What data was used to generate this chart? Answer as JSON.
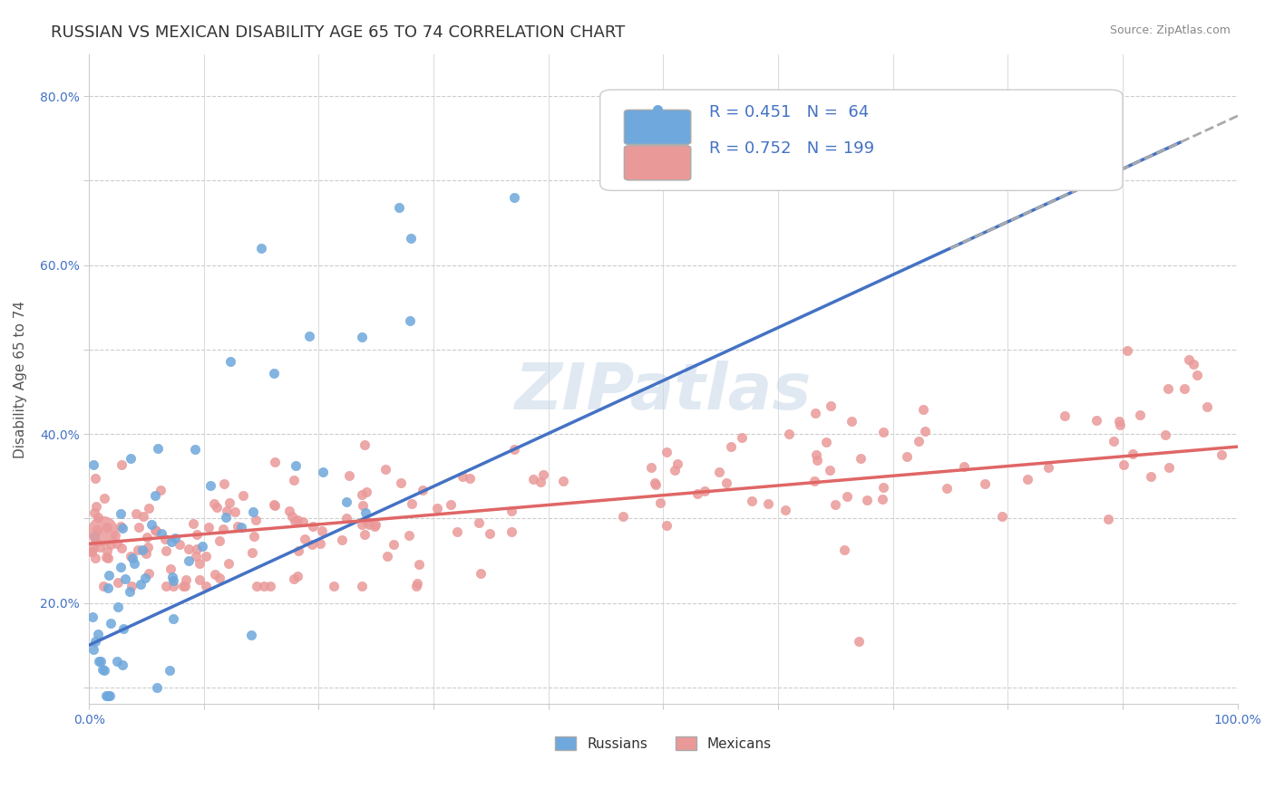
{
  "title": "RUSSIAN VS MEXICAN DISABILITY AGE 65 TO 74 CORRELATION CHART",
  "source_text": "Source: ZipAtlas.com",
  "xlabel": "",
  "ylabel": "Disability Age 65 to 74",
  "xlim": [
    0.0,
    1.0
  ],
  "ylim": [
    0.08,
    0.85
  ],
  "x_ticks": [
    0.0,
    0.1,
    0.2,
    0.3,
    0.4,
    0.5,
    0.6,
    0.7,
    0.8,
    0.9,
    1.0
  ],
  "y_ticks": [
    0.1,
    0.2,
    0.3,
    0.4,
    0.5,
    0.6,
    0.7,
    0.8
  ],
  "russian_color": "#6fa8dc",
  "mexican_color": "#ea9999",
  "russian_line_color": "#4472c4",
  "mexican_line_color": "#e06666",
  "dashed_line_color": "#aaaaaa",
  "legend_R_russian": "R = 0.451",
  "legend_N_russian": "N =  64",
  "legend_R_mexican": "R = 0.752",
  "legend_N_mexican": "N = 199",
  "background_color": "#ffffff",
  "grid_color": "#cccccc",
  "watermark_text": "ZIPatlas",
  "russian_R": 0.451,
  "russian_N": 64,
  "mexican_R": 0.752,
  "mexican_N": 199,
  "title_fontsize": 13,
  "axis_label_fontsize": 11,
  "tick_fontsize": 10,
  "legend_fontsize": 13,
  "russian_line_x0": 0.0,
  "russian_line_y0": 0.15,
  "russian_line_x1": 0.75,
  "russian_line_y1": 0.62,
  "mexican_line_x0": 0.0,
  "mexican_line_y0": 0.27,
  "mexican_line_x1": 1.0,
  "mexican_line_y1": 0.385
}
